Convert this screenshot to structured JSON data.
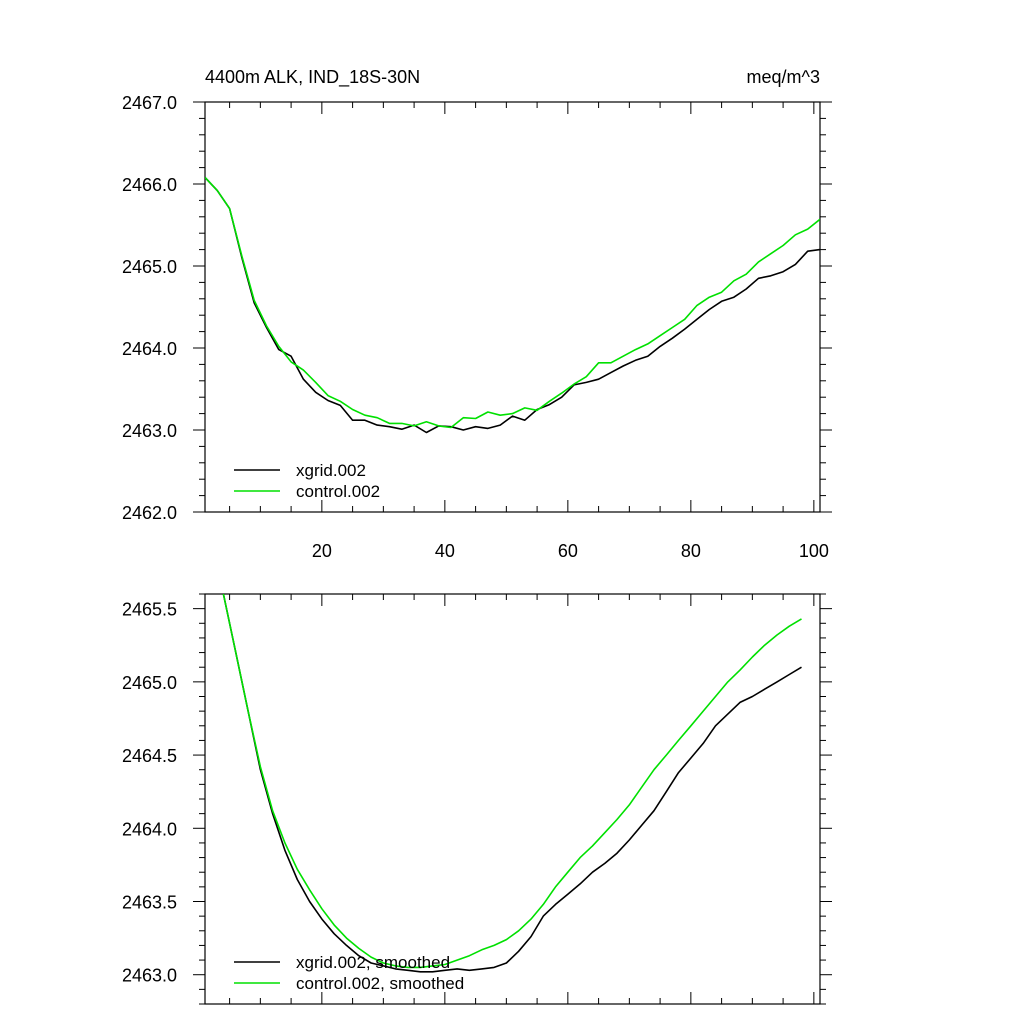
{
  "chart_data": [
    {
      "type": "line",
      "title": "4400m ALK, IND_18S-30N",
      "units": "meq/m^3",
      "xlim": [
        1,
        101
      ],
      "ylim": [
        2462.0,
        2467.0
      ],
      "xticks": [
        20,
        40,
        60,
        80,
        100
      ],
      "xtick_labels": [
        "20",
        "40",
        "60",
        "80",
        "100"
      ],
      "yticks": [
        2462.0,
        2463.0,
        2464.0,
        2465.0,
        2466.0,
        2467.0
      ],
      "ytick_labels": [
        "2462.0",
        "2463.0",
        "2464.0",
        "2465.0",
        "2466.0",
        "2467.0"
      ],
      "legend_position": "bottom-left",
      "series": [
        {
          "name": "xgrid.002",
          "color": "#000000",
          "x": [
            1,
            3,
            5,
            7,
            9,
            11,
            13,
            15,
            17,
            19,
            21,
            23,
            25,
            27,
            29,
            31,
            33,
            35,
            37,
            39,
            41,
            43,
            45,
            47,
            49,
            51,
            53,
            55,
            57,
            59,
            61,
            63,
            65,
            67,
            69,
            71,
            73,
            75,
            77,
            79,
            81,
            83,
            85,
            87,
            89,
            91,
            93,
            95,
            97,
            99,
            101
          ],
          "values": [
            2466.08,
            2465.92,
            2465.7,
            2465.1,
            2464.55,
            2464.25,
            2463.98,
            2463.9,
            2463.62,
            2463.46,
            2463.36,
            2463.3,
            2463.12,
            2463.12,
            2463.06,
            2463.04,
            2463.01,
            2463.06,
            2462.97,
            2463.05,
            2463.04,
            2463.0,
            2463.04,
            2463.02,
            2463.06,
            2463.17,
            2463.12,
            2463.25,
            2463.31,
            2463.4,
            2463.55,
            2463.58,
            2463.62,
            2463.7,
            2463.78,
            2463.85,
            2463.9,
            2464.02,
            2464.12,
            2464.23,
            2464.35,
            2464.47,
            2464.57,
            2464.62,
            2464.72,
            2464.85,
            2464.88,
            2464.93,
            2465.02,
            2465.18,
            2465.2
          ]
        },
        {
          "name": "control.002",
          "color": "#00e000",
          "x": [
            1,
            3,
            5,
            7,
            9,
            11,
            13,
            15,
            17,
            19,
            21,
            23,
            25,
            27,
            29,
            31,
            33,
            35,
            37,
            39,
            41,
            43,
            45,
            47,
            49,
            51,
            53,
            55,
            57,
            59,
            61,
            63,
            65,
            67,
            69,
            71,
            73,
            75,
            77,
            79,
            81,
            83,
            85,
            87,
            89,
            91,
            93,
            95,
            97,
            99,
            101
          ],
          "values": [
            2466.08,
            2465.92,
            2465.7,
            2465.12,
            2464.58,
            2464.27,
            2464.02,
            2463.83,
            2463.73,
            2463.58,
            2463.42,
            2463.35,
            2463.25,
            2463.18,
            2463.15,
            2463.08,
            2463.08,
            2463.05,
            2463.1,
            2463.05,
            2463.03,
            2463.15,
            2463.14,
            2463.22,
            2463.18,
            2463.2,
            2463.27,
            2463.24,
            2463.35,
            2463.45,
            2463.56,
            2463.65,
            2463.82,
            2463.82,
            2463.9,
            2463.98,
            2464.05,
            2464.15,
            2464.25,
            2464.35,
            2464.52,
            2464.62,
            2464.68,
            2464.82,
            2464.9,
            2465.05,
            2465.15,
            2465.25,
            2465.38,
            2465.45,
            2465.57
          ]
        }
      ]
    },
    {
      "type": "line",
      "title": "",
      "xlim": [
        1,
        101
      ],
      "ylim": [
        2462.8,
        2465.6
      ],
      "xticks": [
        20,
        40,
        60,
        80,
        100
      ],
      "yticks": [
        2463.0,
        2463.5,
        2464.0,
        2464.5,
        2465.0,
        2465.5
      ],
      "ytick_labels": [
        "2463.0",
        "2463.5",
        "2464.0",
        "2464.5",
        "2465.0",
        "2465.5"
      ],
      "legend_position": "bottom-left",
      "series": [
        {
          "name": "xgrid.002, smoothed",
          "color": "#000000",
          "x": [
            4,
            6,
            8,
            10,
            12,
            14,
            16,
            18,
            20,
            22,
            24,
            26,
            28,
            30,
            32,
            34,
            36,
            38,
            40,
            42,
            44,
            46,
            48,
            50,
            52,
            54,
            56,
            58,
            60,
            62,
            64,
            66,
            68,
            70,
            72,
            74,
            76,
            78,
            80,
            82,
            84,
            86,
            88,
            90,
            92,
            94,
            96,
            98
          ],
          "values": [
            2465.6,
            2465.2,
            2464.8,
            2464.4,
            2464.1,
            2463.85,
            2463.65,
            2463.5,
            2463.38,
            2463.28,
            2463.2,
            2463.13,
            2463.08,
            2463.06,
            2463.04,
            2463.03,
            2463.02,
            2463.02,
            2463.03,
            2463.04,
            2463.03,
            2463.04,
            2463.05,
            2463.08,
            2463.16,
            2463.26,
            2463.4,
            2463.48,
            2463.55,
            2463.62,
            2463.7,
            2463.76,
            2463.83,
            2463.92,
            2464.02,
            2464.12,
            2464.25,
            2464.38,
            2464.48,
            2464.58,
            2464.7,
            2464.78,
            2464.86,
            2464.9,
            2464.95,
            2465.0,
            2465.05,
            2465.1
          ]
        },
        {
          "name": "control.002, smoothed",
          "color": "#00e000",
          "x": [
            4,
            6,
            8,
            10,
            12,
            14,
            16,
            18,
            20,
            22,
            24,
            26,
            28,
            30,
            32,
            34,
            36,
            38,
            40,
            42,
            44,
            46,
            48,
            50,
            52,
            54,
            56,
            58,
            60,
            62,
            64,
            66,
            68,
            70,
            72,
            74,
            76,
            78,
            80,
            82,
            84,
            86,
            88,
            90,
            92,
            94,
            96,
            98
          ],
          "values": [
            2465.6,
            2465.2,
            2464.8,
            2464.42,
            2464.12,
            2463.9,
            2463.72,
            2463.58,
            2463.45,
            2463.34,
            2463.25,
            2463.18,
            2463.12,
            2463.08,
            2463.06,
            2463.05,
            2463.05,
            2463.06,
            2463.07,
            2463.1,
            2463.13,
            2463.17,
            2463.2,
            2463.24,
            2463.3,
            2463.38,
            2463.48,
            2463.6,
            2463.7,
            2463.8,
            2463.88,
            2463.97,
            2464.06,
            2464.16,
            2464.28,
            2464.4,
            2464.5,
            2464.6,
            2464.7,
            2464.8,
            2464.9,
            2465.0,
            2465.08,
            2465.17,
            2465.25,
            2465.32,
            2465.38,
            2465.43
          ]
        }
      ]
    }
  ]
}
